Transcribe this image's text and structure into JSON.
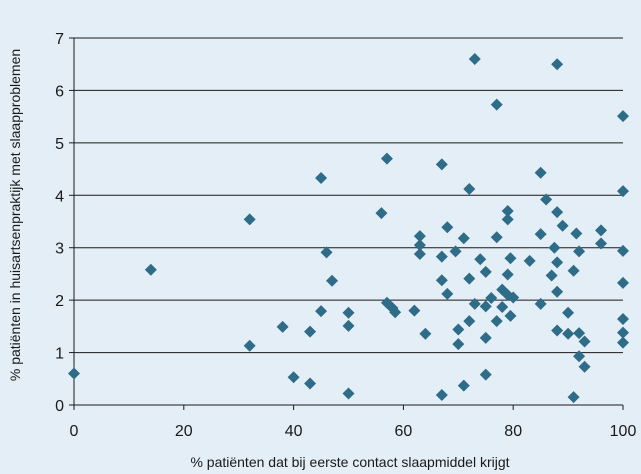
{
  "chart_data": {
    "type": "scatter",
    "title": "",
    "xlabel": "% patiënten dat bij eerste contact slaapmiddel krijgt",
    "ylabel": "% patiënten in huisartsenpraktijk met slaapproblemen",
    "xlim": [
      0,
      100
    ],
    "ylim": [
      0,
      7
    ],
    "xticks": [
      0,
      20,
      40,
      60,
      80,
      100
    ],
    "yticks": [
      0,
      1,
      2,
      3,
      4,
      5,
      6,
      7
    ],
    "grid": "horizontal",
    "legend": "none",
    "marker": "diamond",
    "color": "#2e6c87",
    "points": [
      [
        0,
        0.6
      ],
      [
        14,
        2.58
      ],
      [
        32,
        3.54
      ],
      [
        32,
        1.13
      ],
      [
        38,
        1.49
      ],
      [
        40,
        0.53
      ],
      [
        43,
        1.4
      ],
      [
        43,
        0.41
      ],
      [
        45,
        4.33
      ],
      [
        45,
        1.79
      ],
      [
        46,
        2.91
      ],
      [
        47,
        2.37
      ],
      [
        50,
        1.76
      ],
      [
        50,
        1.51
      ],
      [
        50,
        0.22
      ],
      [
        56,
        3.66
      ],
      [
        57,
        4.7
      ],
      [
        57,
        1.95
      ],
      [
        58,
        1.85
      ],
      [
        58.5,
        1.77
      ],
      [
        62,
        1.8
      ],
      [
        63,
        3.22
      ],
      [
        63,
        3.05
      ],
      [
        63,
        2.88
      ],
      [
        64,
        1.36
      ],
      [
        67,
        4.59
      ],
      [
        67,
        2.83
      ],
      [
        67,
        2.38
      ],
      [
        67,
        0.19
      ],
      [
        68,
        3.39
      ],
      [
        68,
        2.12
      ],
      [
        69.5,
        2.93
      ],
      [
        70,
        1.44
      ],
      [
        70,
        1.16
      ],
      [
        71,
        3.18
      ],
      [
        71,
        0.37
      ],
      [
        72,
        4.12
      ],
      [
        72,
        2.41
      ],
      [
        72,
        1.6
      ],
      [
        73,
        6.6
      ],
      [
        73,
        1.93
      ],
      [
        74,
        2.78
      ],
      [
        75,
        2.54
      ],
      [
        75,
        1.88
      ],
      [
        75,
        1.28
      ],
      [
        75,
        0.58
      ],
      [
        76,
        2.04
      ],
      [
        77,
        5.73
      ],
      [
        77,
        3.2
      ],
      [
        77,
        1.6
      ],
      [
        78,
        2.2
      ],
      [
        78,
        1.87
      ],
      [
        79,
        3.7
      ],
      [
        79,
        3.54
      ],
      [
        79,
        2.49
      ],
      [
        79,
        2.1
      ],
      [
        79.5,
        2.8
      ],
      [
        79.5,
        1.7
      ],
      [
        80,
        2.05
      ],
      [
        83,
        2.75
      ],
      [
        85,
        4.43
      ],
      [
        85,
        3.26
      ],
      [
        85,
        1.93
      ],
      [
        86,
        3.92
      ],
      [
        87,
        2.47
      ],
      [
        87.5,
        3.0
      ],
      [
        88,
        6.5
      ],
      [
        88,
        3.68
      ],
      [
        88,
        2.72
      ],
      [
        88,
        2.16
      ],
      [
        88,
        1.42
      ],
      [
        89,
        3.42
      ],
      [
        90,
        1.76
      ],
      [
        90,
        1.36
      ],
      [
        91,
        2.56
      ],
      [
        91,
        0.15
      ],
      [
        91.5,
        3.27
      ],
      [
        92,
        2.93
      ],
      [
        92,
        1.37
      ],
      [
        92,
        0.93
      ],
      [
        93,
        1.21
      ],
      [
        93,
        0.73
      ],
      [
        96,
        3.33
      ],
      [
        96,
        3.08
      ],
      [
        100,
        5.51
      ],
      [
        100,
        4.08
      ],
      [
        100,
        2.94
      ],
      [
        100,
        2.33
      ],
      [
        100,
        1.64
      ],
      [
        100,
        1.38
      ],
      [
        100,
        1.19
      ]
    ]
  }
}
